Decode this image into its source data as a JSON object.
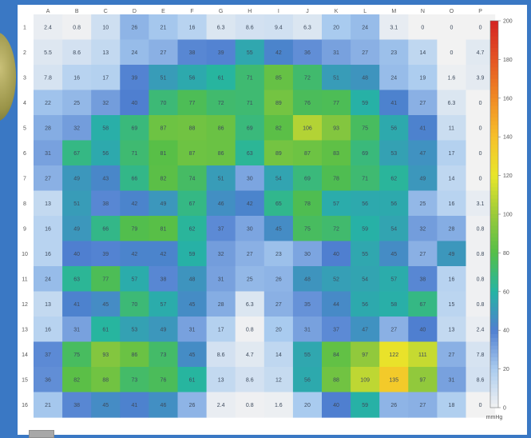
{
  "chart_data": {
    "type": "heatmap",
    "columns": [
      "A",
      "B",
      "C",
      "D",
      "E",
      "F",
      "G",
      "H",
      "I",
      "J",
      "K",
      "L",
      "M",
      "N",
      "O",
      "P"
    ],
    "rows": [
      "1",
      "2",
      "3",
      "4",
      "5",
      "6",
      "7",
      "8",
      "9",
      "10",
      "11",
      "12",
      "13",
      "14",
      "15",
      "16"
    ],
    "values": [
      [
        2.4,
        0.8,
        10,
        26,
        21,
        16,
        6.3,
        8.6,
        9.4,
        6.3,
        20,
        24,
        3.1,
        0,
        0,
        0
      ],
      [
        5.5,
        8.6,
        13,
        24,
        27,
        38,
        39,
        55,
        42,
        36,
        31,
        27,
        23,
        14,
        0,
        4.7
      ],
      [
        7.8,
        16,
        17,
        39,
        51,
        56,
        61,
        71,
        85,
        72,
        51,
        48,
        24,
        19,
        1.6,
        3.9
      ],
      [
        22,
        25,
        32,
        40,
        70,
        77,
        72,
        71,
        89,
        76,
        77,
        59,
        41,
        27,
        6.3,
        0
      ],
      [
        28,
        32,
        58,
        69,
        87,
        88,
        86,
        69,
        82,
        106,
        93,
        75,
        56,
        41,
        11,
        0
      ],
      [
        31,
        67,
        56,
        71,
        81,
        87,
        86,
        63,
        89,
        87,
        83,
        69,
        53,
        47,
        17,
        0
      ],
      [
        27,
        49,
        43,
        66,
        82,
        74,
        51,
        30,
        54,
        69,
        78,
        71,
        62,
        49,
        14,
        0
      ],
      [
        13,
        51,
        38,
        42,
        49,
        67,
        46,
        42,
        65,
        78,
        57,
        56,
        56,
        25,
        16,
        3.1
      ],
      [
        16,
        49,
        66,
        79,
        81,
        62,
        37,
        30,
        45,
        75,
        72,
        59,
        54,
        32,
        28,
        0.8
      ],
      [
        16,
        40,
        39,
        42,
        42,
        59,
        32,
        27,
        23,
        30,
        40,
        55,
        45,
        27,
        49,
        0.8
      ],
      [
        24,
        63,
        77,
        57,
        38,
        48,
        31,
        25,
        26,
        48,
        52,
        54,
        57,
        38,
        16,
        0.8
      ],
      [
        13,
        41,
        45,
        70,
        57,
        45,
        28,
        6.3,
        27,
        35,
        44,
        56,
        58,
        67,
        15,
        0.8
      ],
      [
        16,
        31,
        61,
        53,
        49,
        31,
        17,
        0.8,
        20,
        31,
        37,
        47,
        27,
        40,
        13,
        2.4
      ],
      [
        37,
        75,
        93,
        86,
        73,
        45,
        8.6,
        4.7,
        14,
        55,
        84,
        97,
        122,
        111,
        27,
        7.8
      ],
      [
        36,
        82,
        88,
        73,
        76,
        61,
        13,
        8.6,
        12,
        56,
        88,
        109,
        135,
        97,
        31,
        8.6
      ],
      [
        21,
        38,
        45,
        41,
        46,
        26,
        2.4,
        0.8,
        1.6,
        20,
        40,
        59,
        26,
        27,
        18,
        0
      ]
    ],
    "colorscale": {
      "ticks": [
        0,
        20,
        40,
        60,
        80,
        100,
        120,
        140,
        160,
        180,
        200
      ],
      "unit": "mmHg",
      "range": [
        0,
        200
      ],
      "colors": [
        "#f2f2f2",
        "#a9cbef",
        "#4f7fd0",
        "#25b4a4",
        "#54be48",
        "#9ccb3a",
        "#e8e62a",
        "#f6c02a",
        "#f08a24",
        "#e45424",
        "#d42222"
      ]
    }
  }
}
